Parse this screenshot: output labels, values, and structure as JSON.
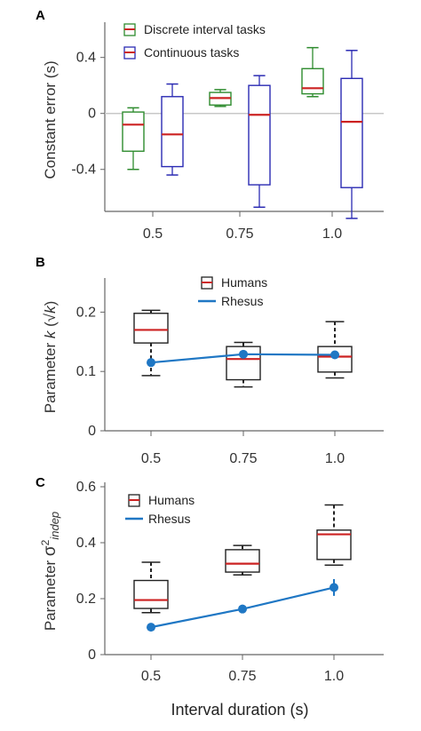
{
  "figure": {
    "xlabel": "Interval duration (s)"
  },
  "chart_data": [
    {
      "panel": "A",
      "type": "box",
      "categories": [
        "0.5",
        "0.75",
        "1.0"
      ],
      "ylabel": "Constant error (s)",
      "ylim": [
        -0.7,
        0.62
      ],
      "yticks": [
        -0.4,
        0,
        0.4
      ],
      "ytick_labels": [
        "-0.4",
        "0",
        "0.4"
      ],
      "zero_line": true,
      "whisker_style": "solid",
      "legend": {
        "placement": "top-left",
        "entries": [
          {
            "label": "Discrete interval tasks",
            "color": "#2e8b2e",
            "marker": "box"
          },
          {
            "label": "Continuous tasks",
            "color": "#2b2bb3",
            "marker": "box"
          }
        ]
      },
      "series": [
        {
          "name": "Discrete interval tasks",
          "color": "#2e8b2e",
          "median_color": "#cc2222",
          "offset": -0.22,
          "boxes": [
            {
              "whisker_low": -0.4,
              "q1": -0.27,
              "median": -0.08,
              "q3": 0.01,
              "whisker_high": 0.04
            },
            {
              "whisker_low": 0.05,
              "q1": 0.06,
              "median": 0.11,
              "q3": 0.15,
              "whisker_high": 0.17
            },
            {
              "whisker_low": 0.12,
              "q1": 0.14,
              "median": 0.18,
              "q3": 0.32,
              "whisker_high": 0.47
            }
          ]
        },
        {
          "name": "Continuous tasks",
          "color": "#2b2bb3",
          "median_color": "#cc2222",
          "offset": 0.22,
          "boxes": [
            {
              "whisker_low": -0.44,
              "q1": -0.38,
              "median": -0.15,
              "q3": 0.12,
              "whisker_high": 0.21
            },
            {
              "whisker_low": -0.67,
              "q1": -0.51,
              "median": -0.01,
              "q3": 0.2,
              "whisker_high": 0.27
            },
            {
              "whisker_low": -0.75,
              "q1": -0.53,
              "median": -0.06,
              "q3": 0.25,
              "whisker_high": 0.45
            }
          ]
        }
      ]
    },
    {
      "panel": "B",
      "type": "box+line",
      "categories": [
        "0.5",
        "0.75",
        "1.0"
      ],
      "ylabel": "Parameter k (√k)",
      "ylabel_parts": {
        "pre": "Parameter ",
        "var": "k",
        "post1": " (",
        "root": "√",
        "var2": "k",
        "post2": ")"
      },
      "ylim": [
        0,
        0.25
      ],
      "yticks": [
        0,
        0.1,
        0.2
      ],
      "ytick_labels": [
        "0",
        "0.1",
        "0.2"
      ],
      "whisker_style": "dashed",
      "legend": {
        "placement": "top-center",
        "entries": [
          {
            "label": "Humans",
            "color": "#222222",
            "marker": "box"
          },
          {
            "label": "Rhesus",
            "color": "#1f77c4",
            "marker": "line"
          }
        ]
      },
      "series": [
        {
          "name": "Humans",
          "color": "#222222",
          "median_color": "#cc2222",
          "offset": 0,
          "boxes": [
            {
              "whisker_low": 0.093,
              "q1": 0.148,
              "median": 0.17,
              "q3": 0.198,
              "whisker_high": 0.203
            },
            {
              "whisker_low": 0.074,
              "q1": 0.086,
              "median": 0.121,
              "q3": 0.142,
              "whisker_high": 0.149
            },
            {
              "whisker_low": 0.089,
              "q1": 0.099,
              "median": 0.125,
              "q3": 0.142,
              "whisker_high": 0.184
            }
          ]
        },
        {
          "name": "Rhesus",
          "type": "line",
          "color": "#1f77c4",
          "values": [
            0.115,
            0.129,
            0.128
          ],
          "errors": [
            0.005,
            0.006,
            0.006
          ]
        }
      ]
    },
    {
      "panel": "C",
      "type": "box+line",
      "categories": [
        "0.5",
        "0.75",
        "1.0"
      ],
      "ylabel": "Parameter σ²indep",
      "ylabel_parts": {
        "pre": "Parameter ",
        "sigma": "σ",
        "sup": "2",
        "sub": "indep"
      },
      "ylim": [
        0,
        0.6
      ],
      "yticks": [
        0,
        0.2,
        0.4,
        0.6
      ],
      "ytick_labels": [
        "0",
        "0.2",
        "0.4",
        "0.6"
      ],
      "whisker_style": "dashed",
      "legend": {
        "placement": "top-left",
        "entries": [
          {
            "label": "Humans",
            "color": "#222222",
            "marker": "box"
          },
          {
            "label": "Rhesus",
            "color": "#1f77c4",
            "marker": "line"
          }
        ]
      },
      "series": [
        {
          "name": "Humans",
          "color": "#222222",
          "median_color": "#cc2222",
          "offset": 0,
          "boxes": [
            {
              "whisker_low": 0.15,
              "q1": 0.165,
              "median": 0.195,
              "q3": 0.265,
              "whisker_high": 0.33
            },
            {
              "whisker_low": 0.285,
              "q1": 0.295,
              "median": 0.325,
              "q3": 0.375,
              "whisker_high": 0.39
            },
            {
              "whisker_low": 0.32,
              "q1": 0.34,
              "median": 0.43,
              "q3": 0.445,
              "whisker_high": 0.535
            }
          ]
        },
        {
          "name": "Rhesus",
          "type": "line",
          "color": "#1f77c4",
          "values": [
            0.098,
            0.163,
            0.24
          ],
          "errors": [
            0.006,
            0.015,
            0.03
          ]
        }
      ]
    }
  ]
}
